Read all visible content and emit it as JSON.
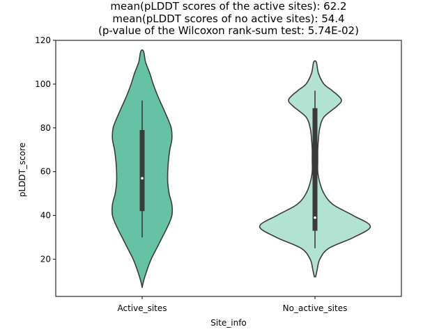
{
  "chart_data": {
    "type": "violin",
    "title_lines": [
      "mean(pLDDT scores of the active sites): 62.2",
      "mean(pLDDT scores of no active sites): 54.4",
      "(p-value of the Wilcoxon rank-sum test: 5.74E-02)"
    ],
    "xlabel": "Site_info",
    "ylabel": "pLDDT_score",
    "ylim": [
      3,
      120
    ],
    "yticks": [
      20,
      40,
      60,
      80,
      100,
      120
    ],
    "categories": [
      "Active_sites",
      "No_active_sites"
    ],
    "colors": [
      "#66c2a5",
      "#b2e2d2"
    ],
    "edge_color": "#3a3a3a",
    "violins": [
      {
        "category": "Active_sites",
        "median": 57,
        "q1": 42,
        "q3": 79,
        "whisker_low": 30,
        "whisker_high": 92.5,
        "density_profile": [
          [
            7,
            0.0
          ],
          [
            10,
            0.02
          ],
          [
            15,
            0.07
          ],
          [
            20,
            0.13
          ],
          [
            25,
            0.21
          ],
          [
            30,
            0.29
          ],
          [
            35,
            0.37
          ],
          [
            40,
            0.43
          ],
          [
            45,
            0.43
          ],
          [
            50,
            0.39
          ],
          [
            55,
            0.37
          ],
          [
            60,
            0.37
          ],
          [
            65,
            0.38
          ],
          [
            70,
            0.4
          ],
          [
            75,
            0.43
          ],
          [
            80,
            0.42
          ],
          [
            85,
            0.36
          ],
          [
            90,
            0.29
          ],
          [
            95,
            0.22
          ],
          [
            100,
            0.16
          ],
          [
            105,
            0.11
          ],
          [
            110,
            0.05
          ],
          [
            115,
            0.02
          ]
        ]
      },
      {
        "category": "No_active_sites",
        "median": 39,
        "q1": 33,
        "q3": 89,
        "whisker_low": 25,
        "whisker_high": 97,
        "density_profile": [
          [
            12,
            0.01
          ],
          [
            15,
            0.03
          ],
          [
            20,
            0.07
          ],
          [
            25,
            0.2
          ],
          [
            30,
            0.56
          ],
          [
            35,
            0.8
          ],
          [
            40,
            0.55
          ],
          [
            45,
            0.26
          ],
          [
            50,
            0.13
          ],
          [
            55,
            0.07
          ],
          [
            60,
            0.04
          ],
          [
            65,
            0.04
          ],
          [
            70,
            0.04
          ],
          [
            75,
            0.05
          ],
          [
            80,
            0.07
          ],
          [
            85,
            0.13
          ],
          [
            90,
            0.32
          ],
          [
            93,
            0.38
          ],
          [
            97,
            0.25
          ],
          [
            100,
            0.13
          ],
          [
            105,
            0.05
          ],
          [
            110,
            0.02
          ]
        ]
      }
    ],
    "grid": false,
    "legend": "none"
  }
}
